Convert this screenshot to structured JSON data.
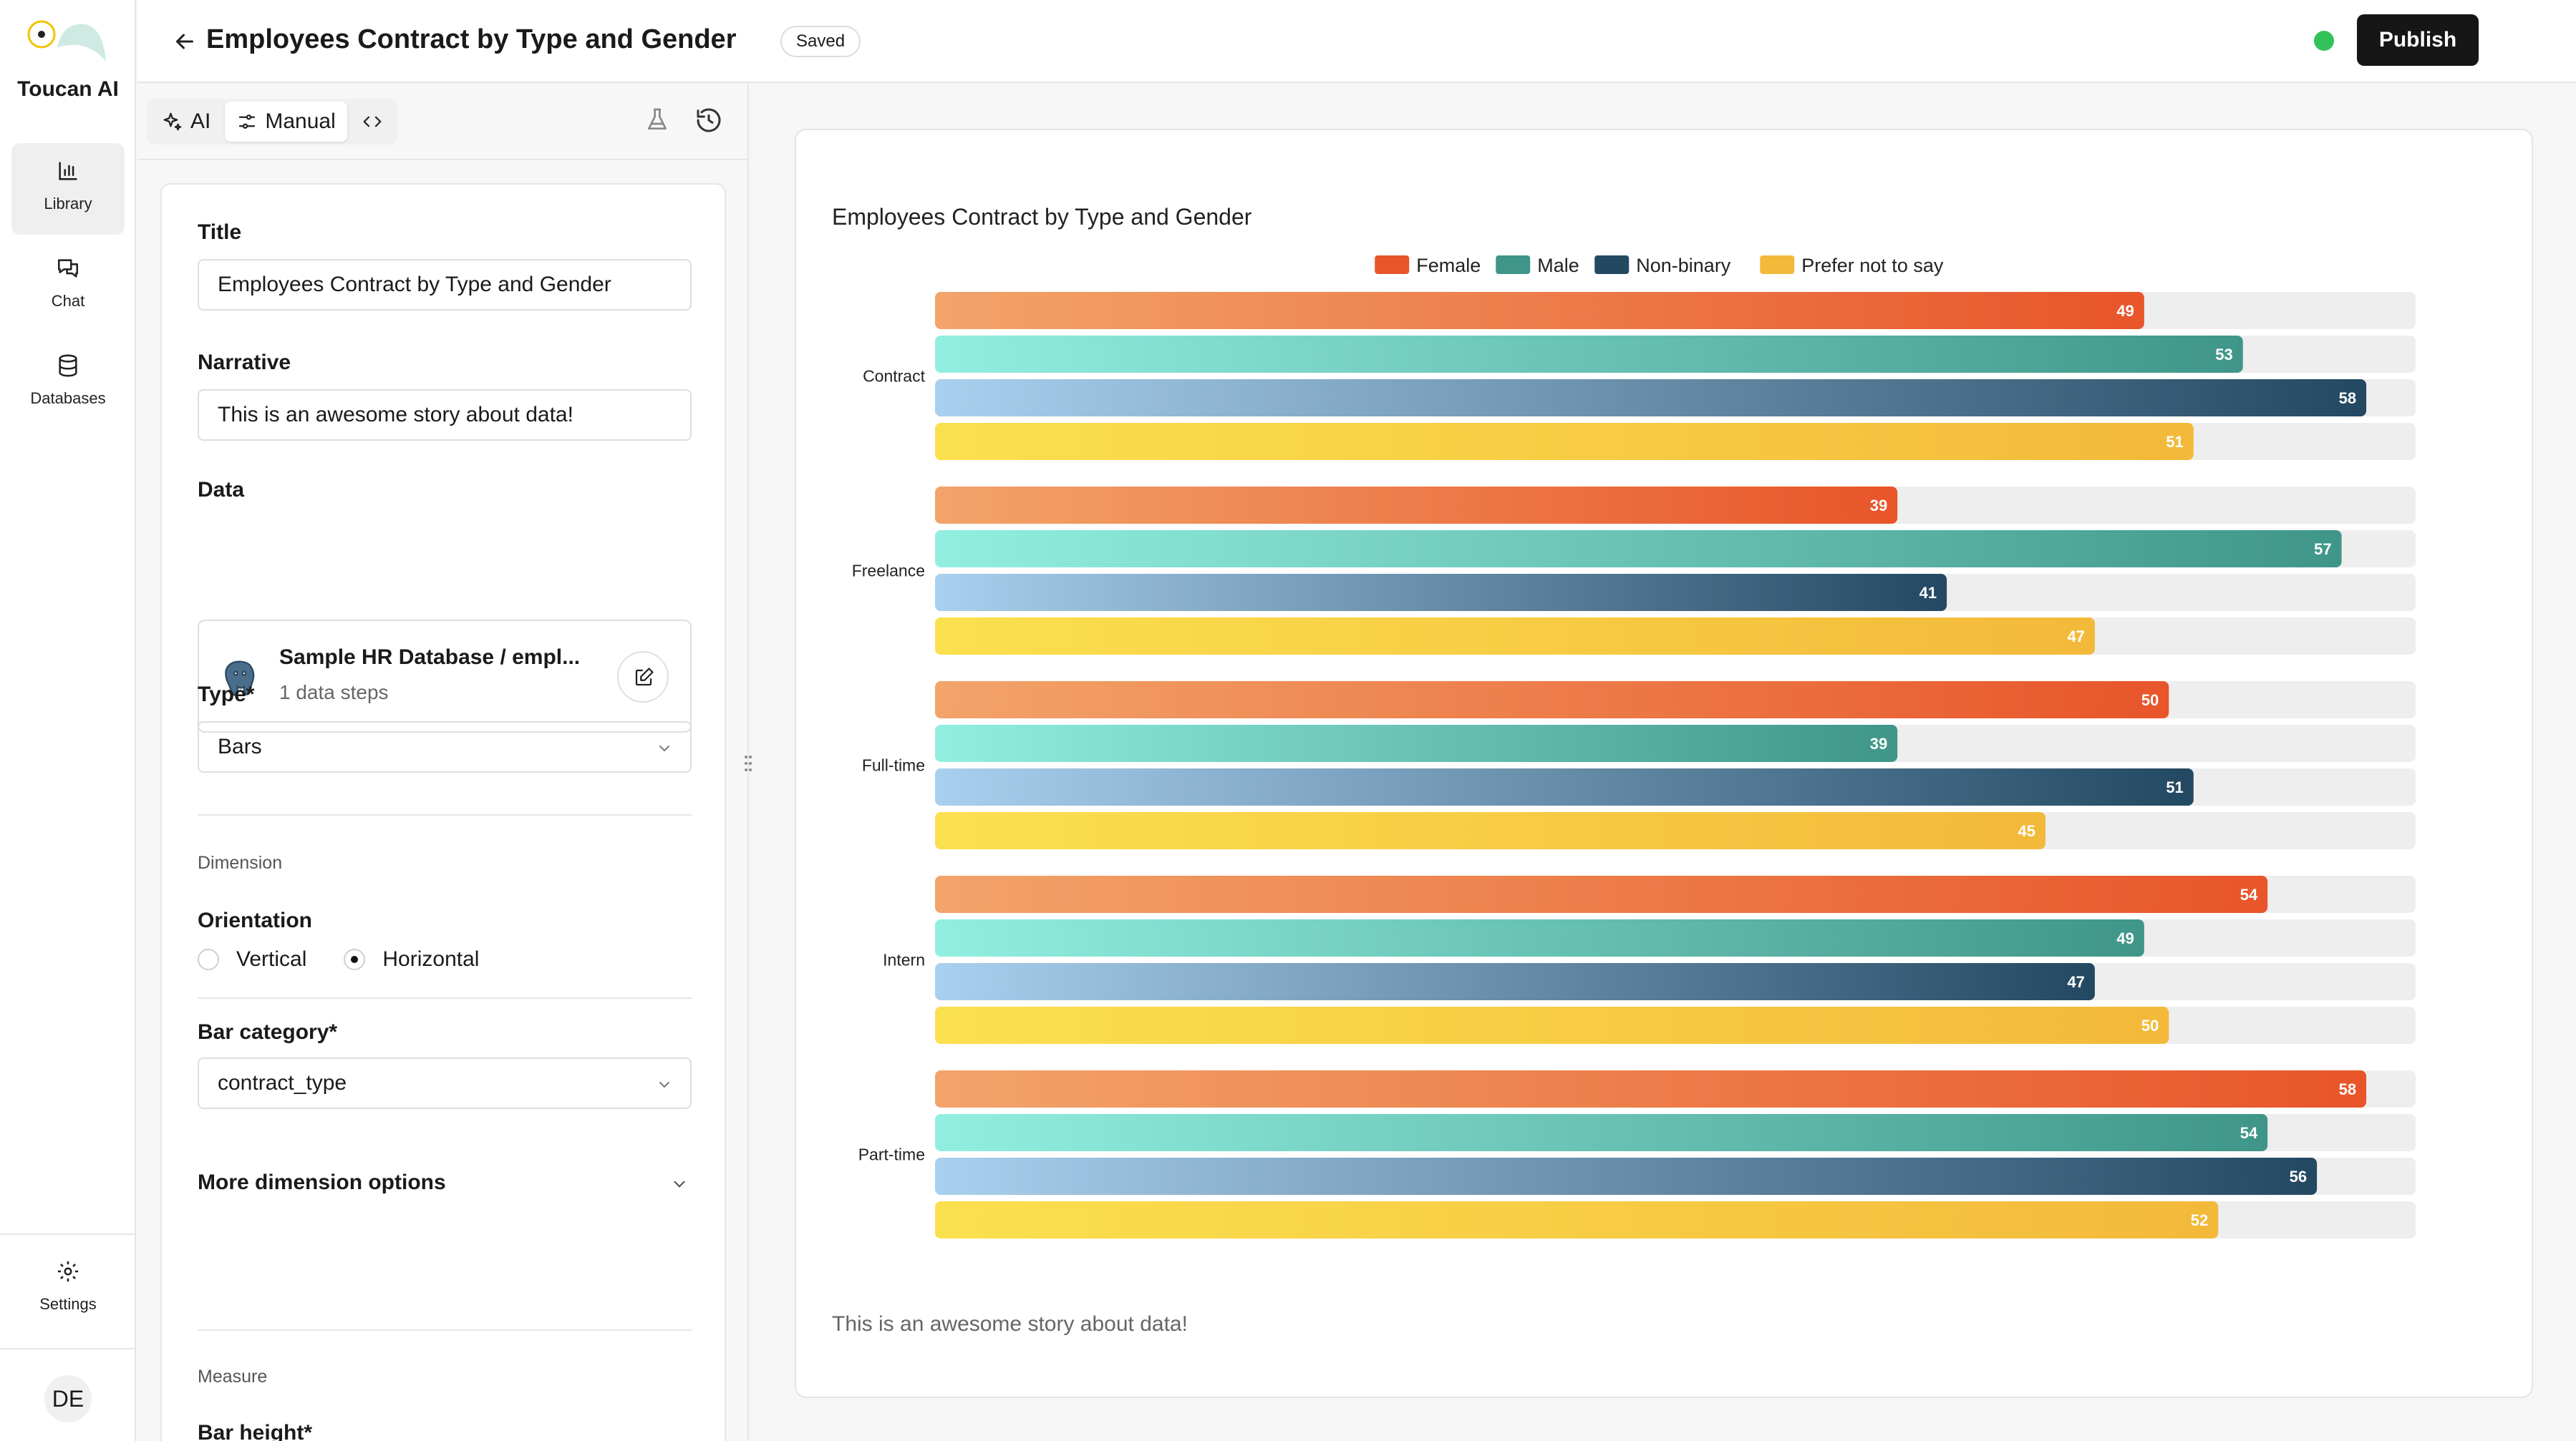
{
  "app": {
    "name": "Toucan AI"
  },
  "nav": {
    "items": [
      {
        "label": "Library",
        "icon": "bar-chart-icon",
        "active": true
      },
      {
        "label": "Chat",
        "icon": "chat-icon"
      },
      {
        "label": "Databases",
        "icon": "database-icon"
      }
    ],
    "settings_label": "Settings",
    "avatar_initials": "DE"
  },
  "header": {
    "title": "Employees Contract by Type and Gender",
    "status": "Saved",
    "publish_label": "Publish",
    "status_color": "#33c25a"
  },
  "editor": {
    "modes": [
      {
        "label": "AI",
        "icon": "sparkles-icon"
      },
      {
        "label": "Manual",
        "icon": "sliders-icon",
        "active": true
      },
      {
        "label": "",
        "icon": "code-icon"
      }
    ],
    "fields": {
      "title_label": "Title",
      "title_value": "Employees Contract by Type and Gender",
      "narrative_label": "Narrative",
      "narrative_value": "This is an awesome story about data!",
      "data_label": "Data",
      "datasource_name": "Sample HR Database / empl...",
      "datasource_steps": "1 data steps",
      "type_label": "Type*",
      "type_value": "Bars",
      "dimension_section": "Dimension",
      "orientation_label": "Orientation",
      "orientation_options": [
        "Vertical",
        "Horizontal"
      ],
      "orientation_selected": "Horizontal",
      "bar_category_label": "Bar category*",
      "bar_category_value": "contract_type",
      "more_dimension_label": "More dimension options",
      "measure_section": "Measure",
      "bar_height_label": "Bar height*"
    }
  },
  "preview": {
    "narrative": "This is an awesome story about data!"
  },
  "chart_data": {
    "type": "bar",
    "orientation": "horizontal",
    "title": "Employees Contract by Type and Gender",
    "categories": [
      "Contract",
      "Freelance",
      "Full-time",
      "Intern",
      "Part-time"
    ],
    "series": [
      {
        "name": "Female",
        "values": [
          49,
          39,
          50,
          54,
          58
        ],
        "color": "#e8552a",
        "color_light": "#f2a46a"
      },
      {
        "name": "Male",
        "values": [
          53,
          57,
          39,
          49,
          54
        ],
        "color": "#3f9688",
        "color_light": "#92efe0"
      },
      {
        "name": "Non-binary",
        "values": [
          58,
          41,
          51,
          47,
          56
        ],
        "color": "#234862",
        "color_light": "#a9d0ee"
      },
      {
        "name": "Prefer not to say",
        "values": [
          51,
          47,
          45,
          50,
          52
        ],
        "color": "#f3b93a",
        "color_light": "#fbe04e"
      }
    ],
    "xlim": [
      0,
      60
    ],
    "legend_position": "top",
    "track_color": "#eeeeee",
    "grid": false
  }
}
